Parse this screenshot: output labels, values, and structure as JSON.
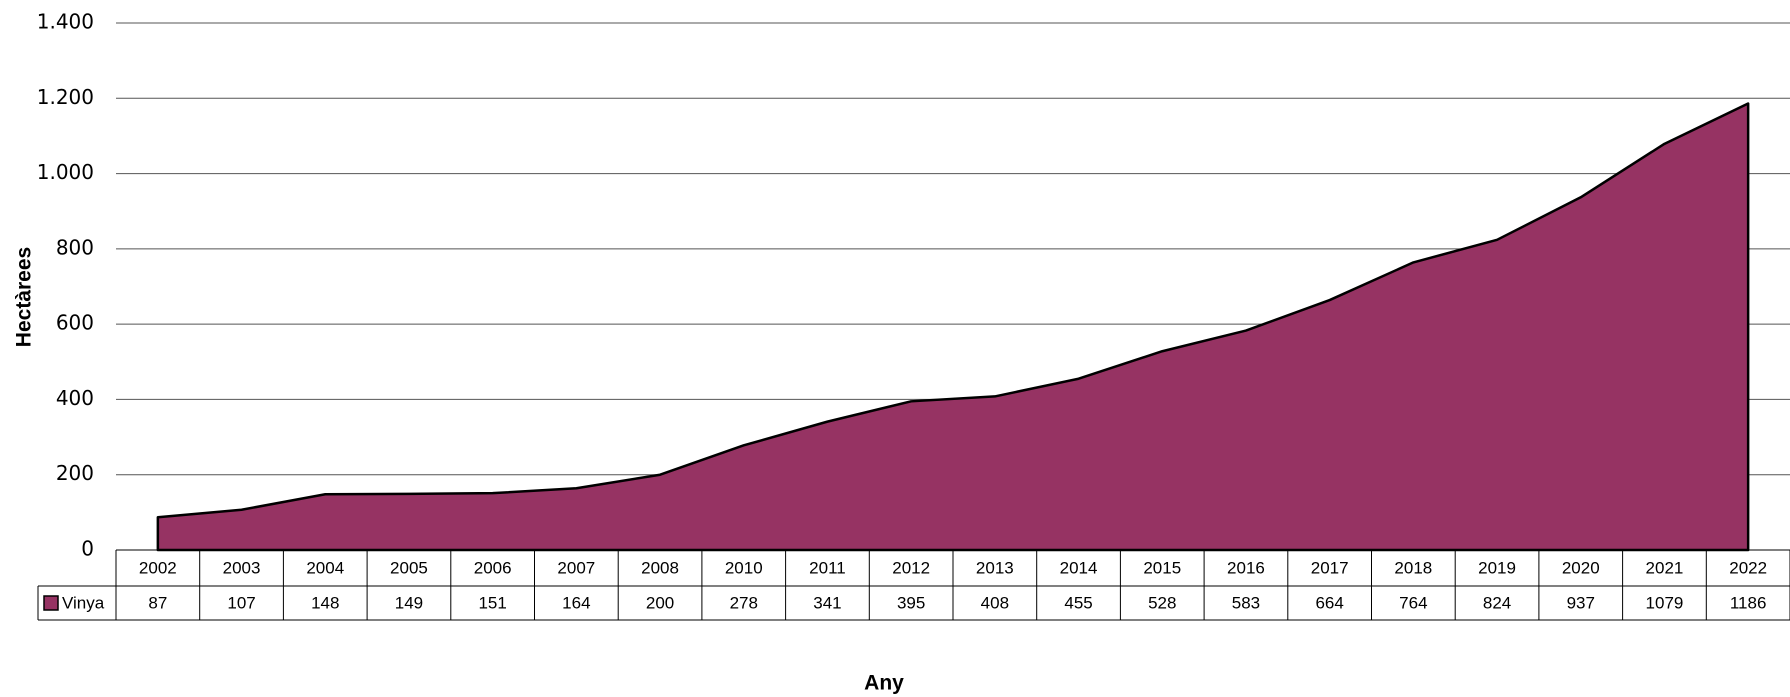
{
  "chart_data": {
    "type": "area",
    "y_label": "Hectàrees",
    "x_label": "Any",
    "categories": [
      "2002",
      "2003",
      "2004",
      "2005",
      "2006",
      "2007",
      "2008",
      "2010",
      "2011",
      "2012",
      "2013",
      "2014",
      "2015",
      "2016",
      "2017",
      "2018",
      "2019",
      "2020",
      "2021",
      "2022"
    ],
    "series": [
      {
        "name": "Vinya",
        "color": "#963363",
        "values": [
          87,
          107,
          148,
          149,
          151,
          164,
          200,
          278,
          341,
          395,
          408,
          455,
          528,
          583,
          664,
          764,
          824,
          937,
          1079,
          1186
        ]
      }
    ],
    "ylim": [
      0,
      1400
    ],
    "yticks": [
      0,
      200,
      400,
      600,
      800,
      {
        "value": 1000,
        "label": "1.000"
      },
      {
        "value": 1200,
        "label": "1.200"
      },
      {
        "value": 1400,
        "label": "1.400"
      }
    ],
    "grid": true,
    "data_table": true
  }
}
